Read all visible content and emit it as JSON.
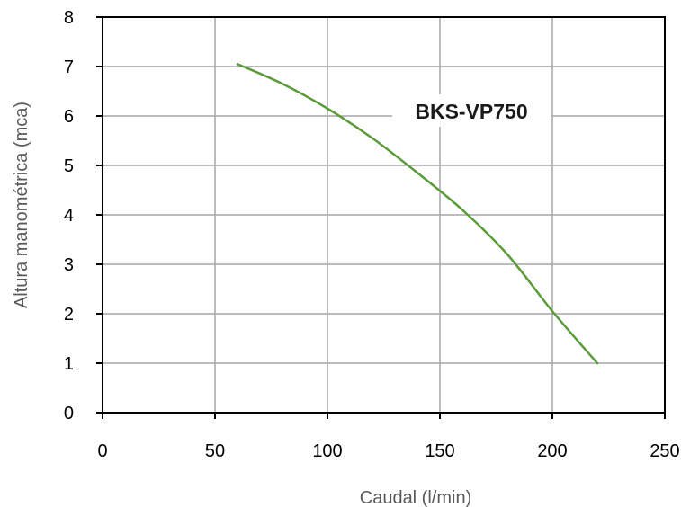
{
  "chart_data": {
    "type": "line",
    "xlabel": "Caudal (l/min)",
    "ylabel": "Altura manométrica (mca)",
    "xlim": [
      0,
      250
    ],
    "ylim": [
      0,
      8
    ],
    "xticks": [
      "0",
      "50",
      "100",
      "150",
      "200",
      "250"
    ],
    "yticks": [
      "0",
      "1",
      "2",
      "3",
      "4",
      "5",
      "6",
      "7",
      "8"
    ],
    "grid": true,
    "series": [
      {
        "name": "BKS-VP750",
        "color": "#5b9b3b",
        "x": [
          60,
          80,
          100,
          120,
          140,
          160,
          180,
          200,
          220
        ],
        "y": [
          7.05,
          6.65,
          6.15,
          5.55,
          4.85,
          4.1,
          3.2,
          2.05,
          1.0
        ]
      }
    ]
  }
}
